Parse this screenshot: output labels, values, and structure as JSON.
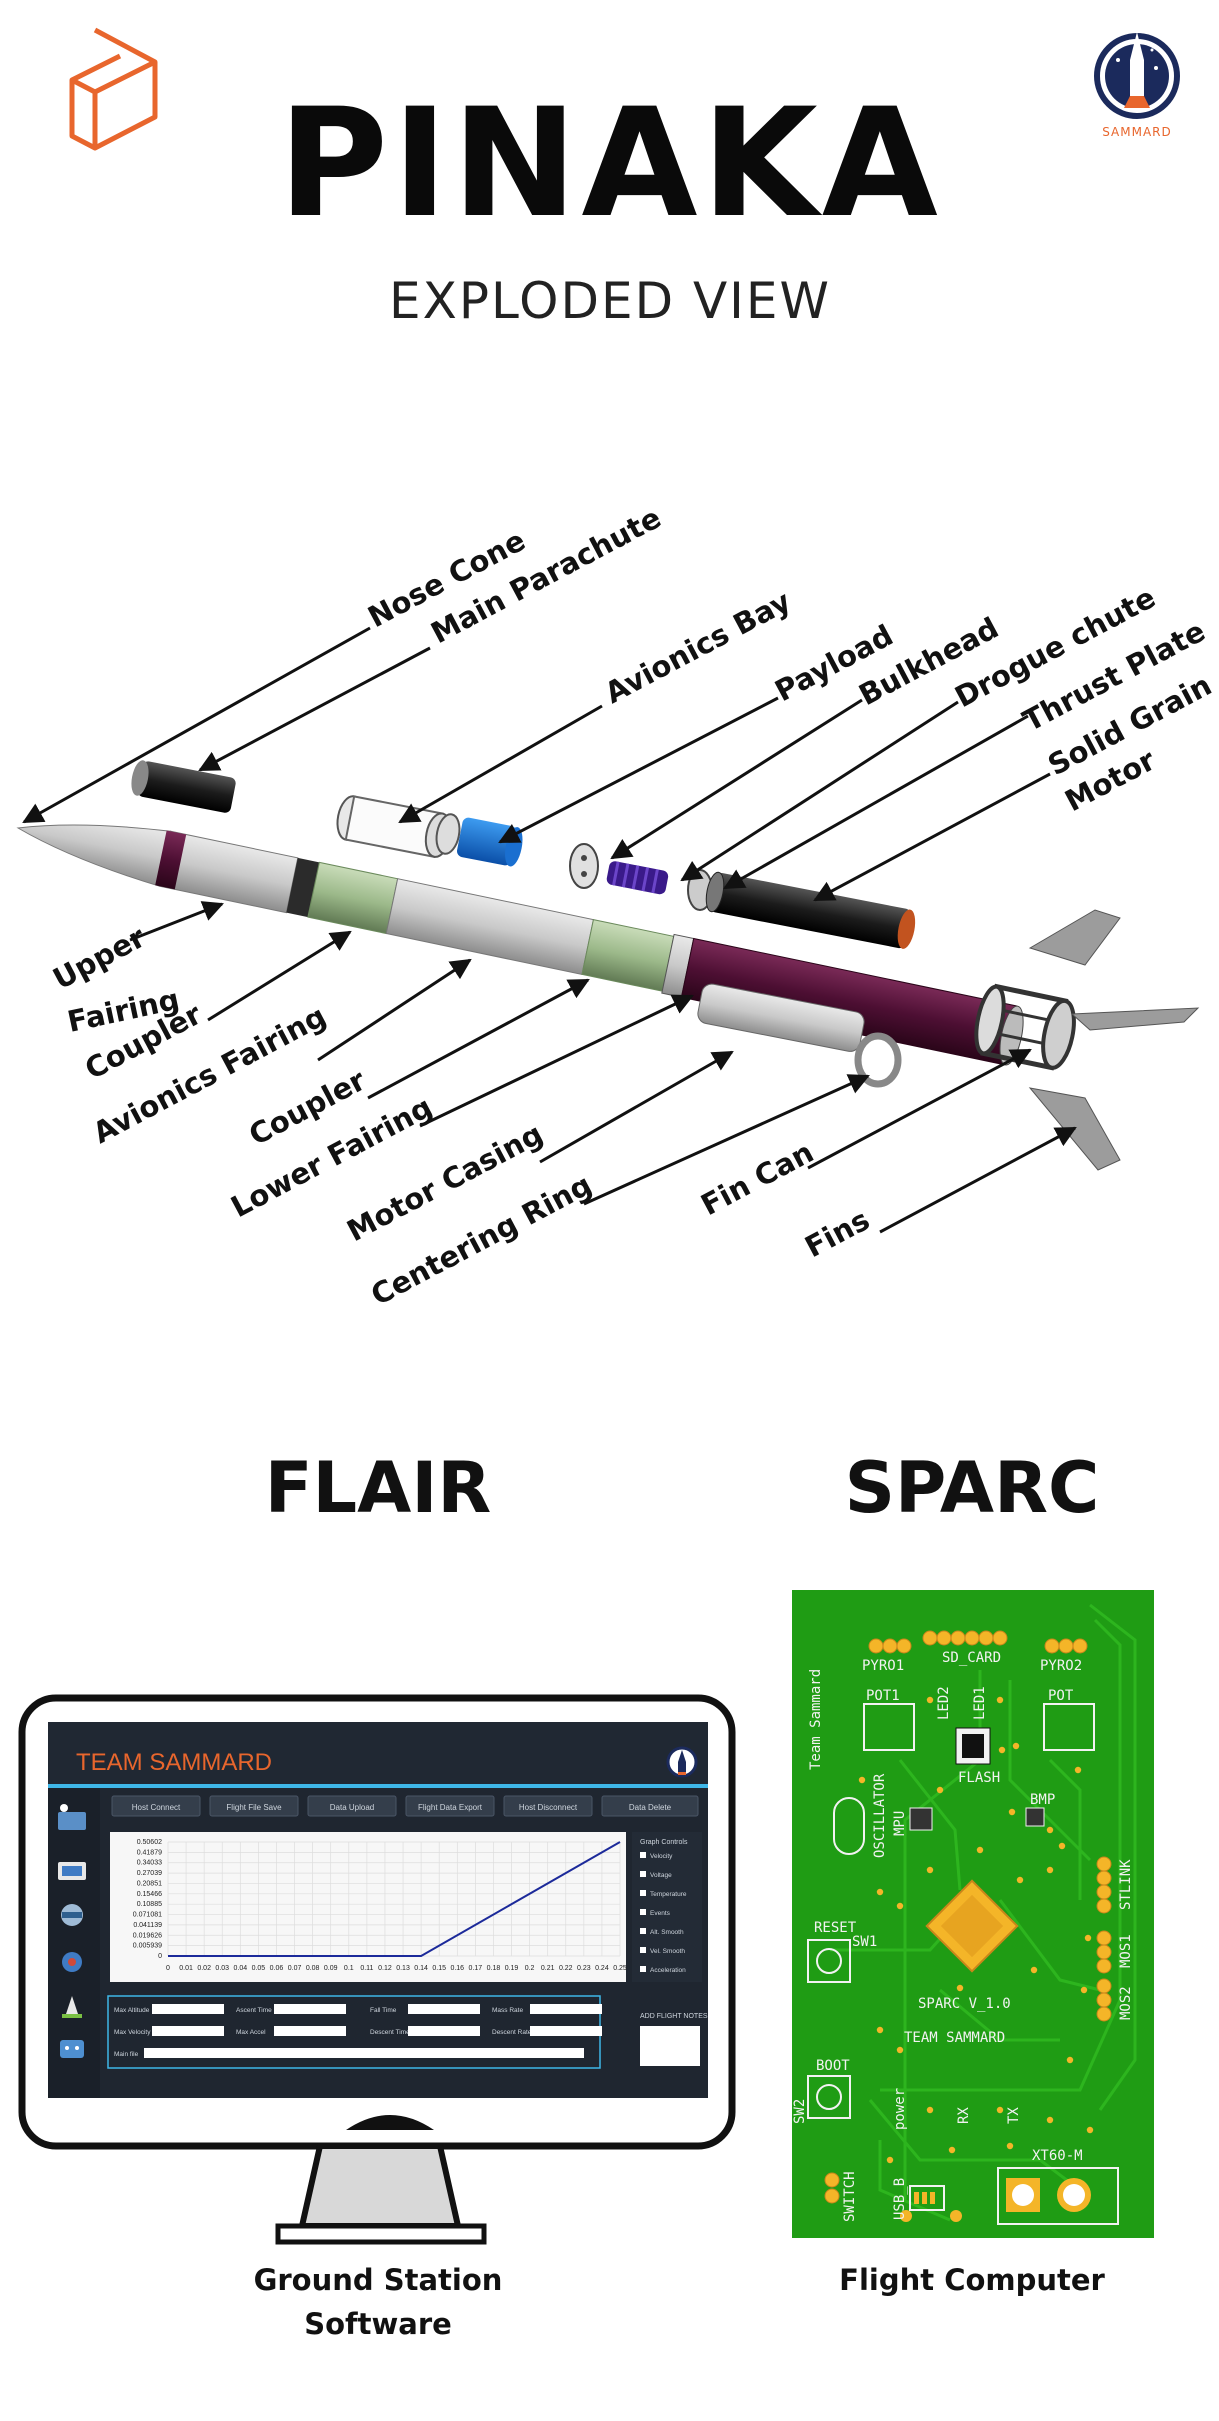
{
  "header": {
    "title": "PINAKA",
    "subtitle": "EXPLODED VIEW",
    "badge_text": "SAMMARD"
  },
  "exploded_view": {
    "labels": [
      "Nose Cone",
      "Main Parachute",
      "Avionics Bay",
      "Payload",
      "Bulkhead",
      "Drogue chute",
      "Thrust Plate",
      "Solid Grain",
      "Motor",
      "Upper",
      "Fairing",
      "Coupler",
      "Avionics Fairing",
      "Coupler",
      "Lower Fairing",
      "Motor Casing",
      "Fin Can",
      "Centering Ring",
      "Fins"
    ]
  },
  "flair": {
    "title": "FLAIR",
    "caption_line1": "Ground Station",
    "caption_line2": "Software",
    "app": {
      "name": "TEAM SAMMARD",
      "buttons": [
        "Host Connect",
        "Flight File Save",
        "Data Upload",
        "Flight Data Export",
        "Host Disconnect",
        "Data Delete"
      ],
      "y_ticks": [
        "0.50602",
        "0.41879",
        "0.34033",
        "0.27039",
        "0.20851",
        "0.15466",
        "0.10885",
        "0.071081",
        "0.041139",
        "0.019626",
        "0.005939",
        "0"
      ],
      "x_ticks": [
        "0",
        "0.01",
        "0.02",
        "0.03",
        "0.04",
        "0.05",
        "0.06",
        "0.07",
        "0.08",
        "0.09",
        "0.1",
        "0.11",
        "0.12",
        "0.13",
        "0.14",
        "0.15",
        "0.16",
        "0.17",
        "0.18",
        "0.19",
        "0.2",
        "0.21",
        "0.22",
        "0.23",
        "0.24",
        "0.25"
      ],
      "graph_controls_title": "Graph Controls",
      "graph_controls": [
        "Velocity",
        "Voltage",
        "Temperature",
        "Events",
        "Alt. Smooth",
        "Vel. Smooth",
        "Acceleration"
      ],
      "fields": [
        "Max Altitude",
        "Ascent Time",
        "Fall Time",
        "Mass Rate",
        "Max Velocity",
        "Max Accel",
        "Descent Time",
        "Descent Rate",
        "Main file"
      ],
      "notes_label": "ADD FLIGHT NOTES",
      "series": [
        {
          "x": 0,
          "y": 0
        },
        {
          "x": 0.14,
          "y": 0
        },
        {
          "x": 0.25,
          "y": 0.50602
        }
      ],
      "x_range": [
        0,
        0.25
      ],
      "y_range": [
        0,
        0.50602
      ]
    }
  },
  "sparc": {
    "title": "SPARC",
    "caption": "Flight Computer",
    "silk": {
      "pyro1": "PYRO1",
      "sd_card": "SD_CARD",
      "pyro2": "PYRO2",
      "pot1": "POT1",
      "led2": "LED2",
      "led1": "LED1",
      "pot": "POT",
      "team_vertical": "Team Sammard",
      "flash": "FLASH",
      "bmp": "BMP",
      "oscillator": "OSCILLATOR",
      "mpu": "MPU",
      "stlink": "STLINK",
      "reset": "RESET",
      "sw1": "SW1",
      "mos1": "MOS1",
      "mos2": "MOS2",
      "version": "SPARC V_1.0",
      "team": "TEAM SAMMARD",
      "boot": "BOOT",
      "sw2": "SW2",
      "power": "power",
      "rx": "RX",
      "tx": "TX",
      "xt60": "XT60-M",
      "switch": "SWITCH",
      "usb": "USB_B"
    }
  },
  "colors": {
    "accent_orange": "#e8662d",
    "pcb_green": "#1f9c14",
    "pcb_trace": "#2fb820",
    "pad_gold": "#f4b528",
    "fairing_purple": "#4d0f33",
    "coupler_green": "#9cb98a",
    "ui_bg": "#1f2630"
  }
}
